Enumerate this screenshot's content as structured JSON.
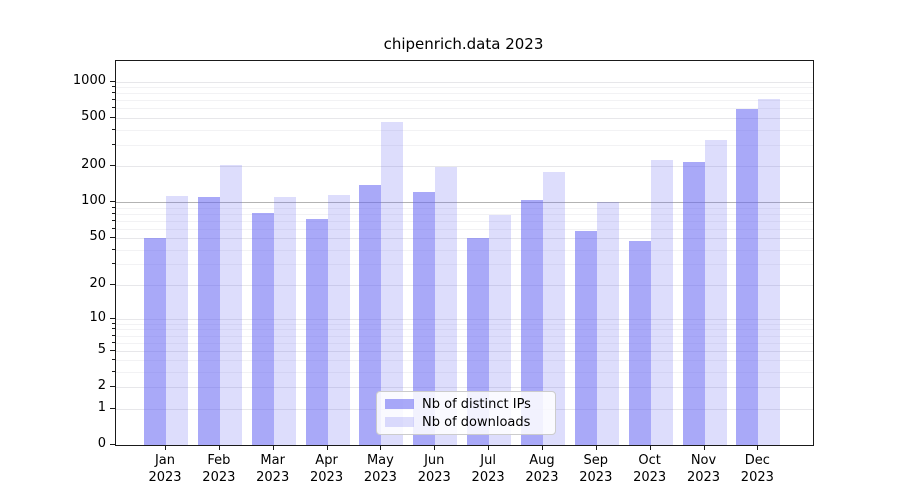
{
  "title": "chipenrich.data 2023",
  "legend": {
    "items": [
      {
        "label": "Nb of distinct IPs",
        "series": "ips"
      },
      {
        "label": "Nb of downloads",
        "series": "downloads"
      }
    ]
  },
  "colors": {
    "ips_bar": "rgba(99,99,243,0.55)",
    "downloads_bar": "rgba(99,99,243,0.22)",
    "grid_major": "#e7e7ea",
    "grid_minor": "#f2f2f4",
    "grid_hundred": "#b3b3b3",
    "frame": "#1a1a1a"
  },
  "chart_data": {
    "type": "bar",
    "title": "chipenrich.data 2023",
    "categories": [
      "Jan 2023",
      "Feb 2023",
      "Mar 2023",
      "Apr 2023",
      "May 2023",
      "Jun 2023",
      "Jul 2023",
      "Aug 2023",
      "Sep 2023",
      "Oct 2023",
      "Nov 2023",
      "Dec 2023"
    ],
    "series": [
      {
        "name": "Nb of distinct IPs",
        "values": [
          50,
          111,
          82,
          73,
          138,
          122,
          50,
          105,
          57,
          47,
          215,
          590
        ]
      },
      {
        "name": "Nb of downloads",
        "values": [
          113,
          205,
          111,
          114,
          460,
          195,
          78,
          178,
          100,
          225,
          330,
          715
        ]
      }
    ],
    "xlabel": "",
    "ylabel": "",
    "y_axis": {
      "scale": "log1p",
      "ticks": [
        0,
        1,
        2,
        5,
        10,
        20,
        50,
        100,
        200,
        500,
        1000
      ],
      "minor_ticks": [
        3,
        4,
        6,
        7,
        8,
        9,
        30,
        40,
        60,
        70,
        80,
        90,
        300,
        400,
        600,
        700,
        800,
        900
      ],
      "max_value": 1480
    },
    "grid": true,
    "legend_position": "lower center"
  }
}
